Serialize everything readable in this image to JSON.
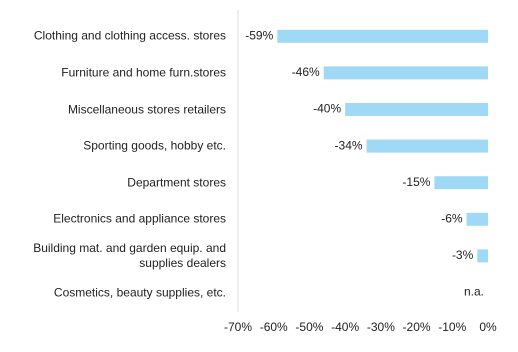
{
  "chart_data": {
    "type": "bar",
    "orientation": "horizontal",
    "categories": [
      "Clothing and clothing access. stores",
      "Furniture and home furn.stores",
      "Miscellaneous stores retailers",
      "Sporting goods, hobby etc.",
      "Department stores",
      "Electronics and appliance stores",
      "Building mat. and garden equip. and\nsupplies dealers",
      "Cosmetics, beauty supplies, etc."
    ],
    "values": [
      -59,
      -46,
      -40,
      -34,
      -15,
      -6,
      -3,
      null
    ],
    "value_labels": [
      "-59%",
      "-46%",
      "-40%",
      "-34%",
      "-15%",
      "-6%",
      "-3%",
      "n.a."
    ],
    "color": "#9fd9f6",
    "xlim": [
      -70,
      0
    ],
    "xticks": [
      {
        "value": -70,
        "label": "-70%"
      },
      {
        "value": -60,
        "label": "-60%"
      },
      {
        "value": -50,
        "label": "-50%"
      },
      {
        "value": -40,
        "label": "-40%"
      },
      {
        "value": -30,
        "label": "-30%"
      },
      {
        "value": -20,
        "label": "-20%"
      },
      {
        "value": -10,
        "label": "-10%"
      },
      {
        "value": 0,
        "label": "0%"
      }
    ]
  }
}
